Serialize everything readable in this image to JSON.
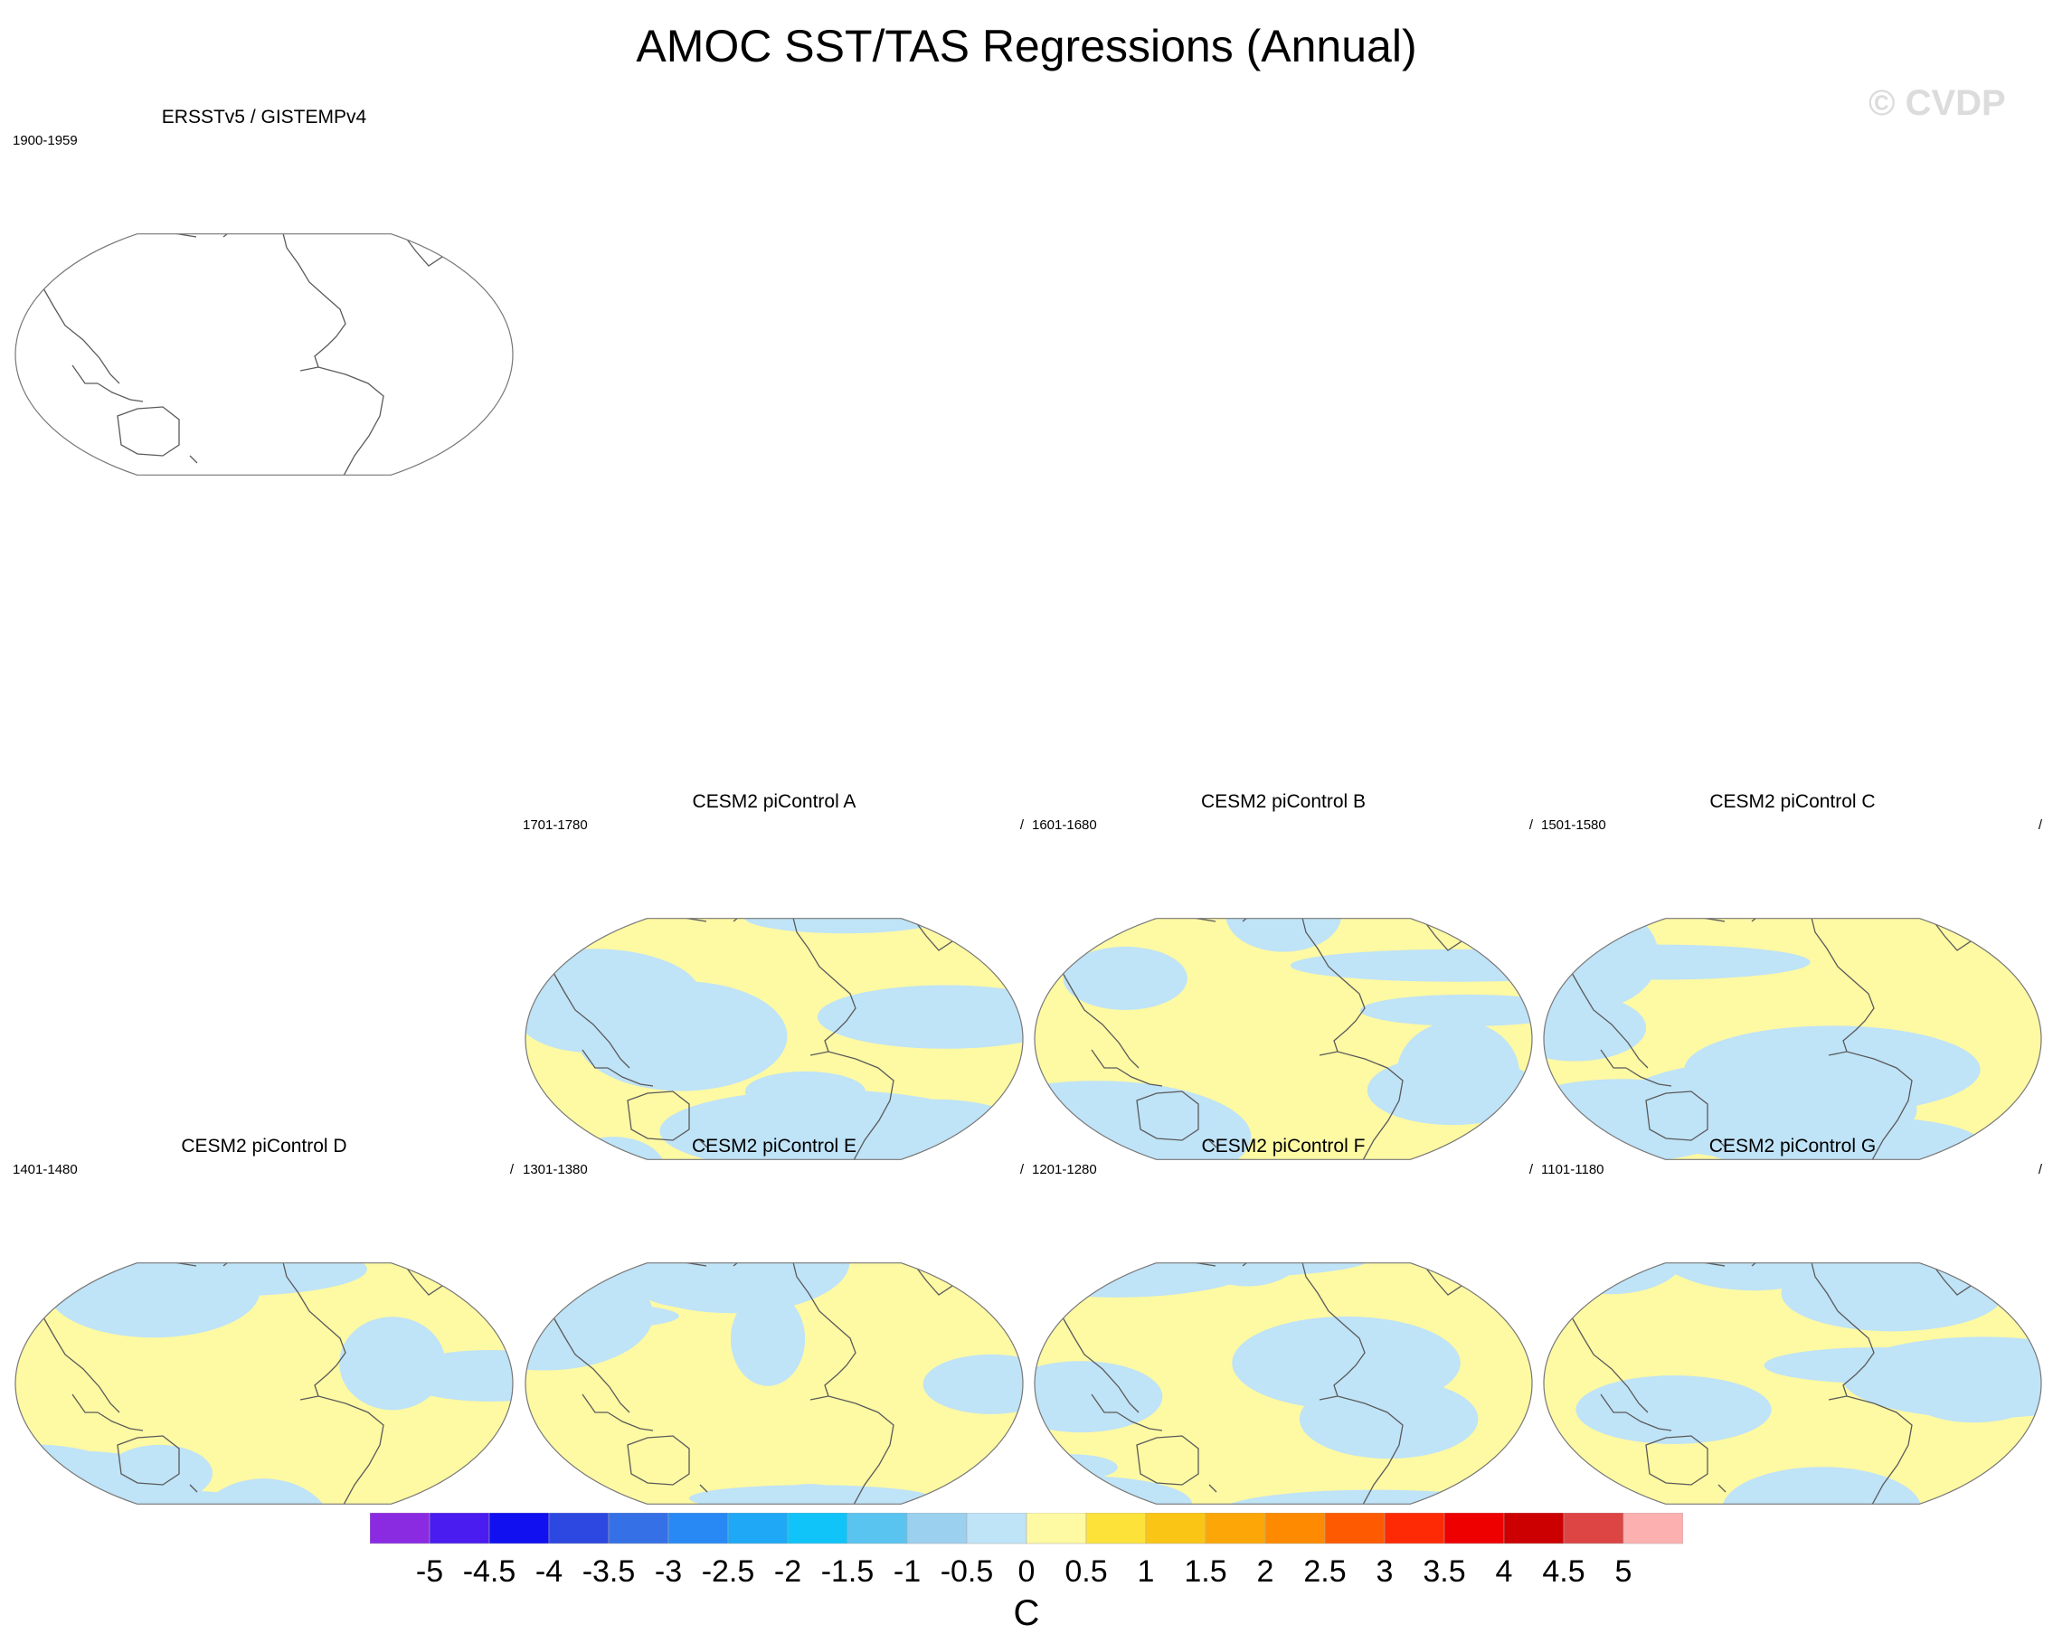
{
  "figure": {
    "title": "AMOC SST/TAS Regressions (Annual)",
    "watermark": "© CVDP",
    "colorbar_unit": "C"
  },
  "palette": {
    "yellow": "#fef9a3",
    "blue": "#bfe3f7",
    "coast": "#5a5a5a"
  },
  "panels": [
    {
      "id": "obs",
      "title": "ERSSTv5 / GISTEMPv4",
      "period": "1900-1959",
      "slash": "",
      "filled": false
    },
    {
      "id": "A",
      "title": "CESM2 piControl A",
      "period": "1701-1780",
      "slash": "/",
      "filled": true
    },
    {
      "id": "B",
      "title": "CESM2 piControl B",
      "period": "1601-1680",
      "slash": "/",
      "filled": true
    },
    {
      "id": "C",
      "title": "CESM2 piControl C",
      "period": "1501-1580",
      "slash": "/",
      "filled": true
    },
    {
      "id": "D",
      "title": "CESM2 piControl D",
      "period": "1401-1480",
      "slash": "/",
      "filled": true
    },
    {
      "id": "E",
      "title": "CESM2 piControl E",
      "period": "1301-1380",
      "slash": "/",
      "filled": true
    },
    {
      "id": "F",
      "title": "CESM2 piControl F",
      "period": "1201-1280",
      "slash": "/",
      "filled": true
    },
    {
      "id": "G",
      "title": "CESM2 piControl G",
      "period": "1101-1180",
      "slash": "/",
      "filled": true
    }
  ],
  "colorbar": {
    "labels": [
      "-5",
      "-4.5",
      "-4",
      "-3.5",
      "-3",
      "-2.5",
      "-2",
      "-1.5",
      "-1",
      "-0.5",
      "0",
      "0.5",
      "1",
      "1.5",
      "2",
      "2.5",
      "3",
      "3.5",
      "4",
      "4.5",
      "5"
    ],
    "colors": [
      "#8a2be2",
      "#4b1cf0",
      "#1010f0",
      "#2d48e0",
      "#3570e6",
      "#2889f5",
      "#1ea8f5",
      "#10c3f8",
      "#5ac4f0",
      "#9bd0ee",
      "#bfe3f7",
      "#fef9a3",
      "#fde23a",
      "#fbc515",
      "#fca707",
      "#fd8a00",
      "#fe5a02",
      "#fe2a05",
      "#ee0000",
      "#cc0000",
      "#dd4444",
      "#fcb0b0"
    ]
  }
}
